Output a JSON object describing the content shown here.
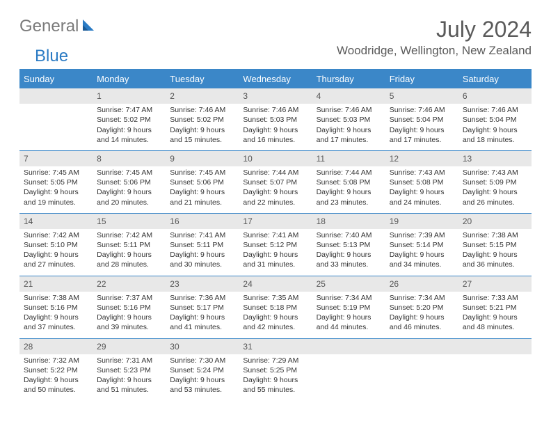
{
  "brand": {
    "part1": "General",
    "part2": "Blue"
  },
  "title": "July 2024",
  "location": "Woodridge, Wellington, New Zealand",
  "header_bg": "#3b87c8",
  "daynum_bg": "#e8e8e8",
  "days": [
    "Sunday",
    "Monday",
    "Tuesday",
    "Wednesday",
    "Thursday",
    "Friday",
    "Saturday"
  ],
  "weeks": [
    [
      null,
      {
        "n": "1",
        "sr": "7:47 AM",
        "ss": "5:02 PM",
        "dl": "9 hours and 14 minutes."
      },
      {
        "n": "2",
        "sr": "7:46 AM",
        "ss": "5:02 PM",
        "dl": "9 hours and 15 minutes."
      },
      {
        "n": "3",
        "sr": "7:46 AM",
        "ss": "5:03 PM",
        "dl": "9 hours and 16 minutes."
      },
      {
        "n": "4",
        "sr": "7:46 AM",
        "ss": "5:03 PM",
        "dl": "9 hours and 17 minutes."
      },
      {
        "n": "5",
        "sr": "7:46 AM",
        "ss": "5:04 PM",
        "dl": "9 hours and 17 minutes."
      },
      {
        "n": "6",
        "sr": "7:46 AM",
        "ss": "5:04 PM",
        "dl": "9 hours and 18 minutes."
      }
    ],
    [
      {
        "n": "7",
        "sr": "7:45 AM",
        "ss": "5:05 PM",
        "dl": "9 hours and 19 minutes."
      },
      {
        "n": "8",
        "sr": "7:45 AM",
        "ss": "5:06 PM",
        "dl": "9 hours and 20 minutes."
      },
      {
        "n": "9",
        "sr": "7:45 AM",
        "ss": "5:06 PM",
        "dl": "9 hours and 21 minutes."
      },
      {
        "n": "10",
        "sr": "7:44 AM",
        "ss": "5:07 PM",
        "dl": "9 hours and 22 minutes."
      },
      {
        "n": "11",
        "sr": "7:44 AM",
        "ss": "5:08 PM",
        "dl": "9 hours and 23 minutes."
      },
      {
        "n": "12",
        "sr": "7:43 AM",
        "ss": "5:08 PM",
        "dl": "9 hours and 24 minutes."
      },
      {
        "n": "13",
        "sr": "7:43 AM",
        "ss": "5:09 PM",
        "dl": "9 hours and 26 minutes."
      }
    ],
    [
      {
        "n": "14",
        "sr": "7:42 AM",
        "ss": "5:10 PM",
        "dl": "9 hours and 27 minutes."
      },
      {
        "n": "15",
        "sr": "7:42 AM",
        "ss": "5:11 PM",
        "dl": "9 hours and 28 minutes."
      },
      {
        "n": "16",
        "sr": "7:41 AM",
        "ss": "5:11 PM",
        "dl": "9 hours and 30 minutes."
      },
      {
        "n": "17",
        "sr": "7:41 AM",
        "ss": "5:12 PM",
        "dl": "9 hours and 31 minutes."
      },
      {
        "n": "18",
        "sr": "7:40 AM",
        "ss": "5:13 PM",
        "dl": "9 hours and 33 minutes."
      },
      {
        "n": "19",
        "sr": "7:39 AM",
        "ss": "5:14 PM",
        "dl": "9 hours and 34 minutes."
      },
      {
        "n": "20",
        "sr": "7:38 AM",
        "ss": "5:15 PM",
        "dl": "9 hours and 36 minutes."
      }
    ],
    [
      {
        "n": "21",
        "sr": "7:38 AM",
        "ss": "5:16 PM",
        "dl": "9 hours and 37 minutes."
      },
      {
        "n": "22",
        "sr": "7:37 AM",
        "ss": "5:16 PM",
        "dl": "9 hours and 39 minutes."
      },
      {
        "n": "23",
        "sr": "7:36 AM",
        "ss": "5:17 PM",
        "dl": "9 hours and 41 minutes."
      },
      {
        "n": "24",
        "sr": "7:35 AM",
        "ss": "5:18 PM",
        "dl": "9 hours and 42 minutes."
      },
      {
        "n": "25",
        "sr": "7:34 AM",
        "ss": "5:19 PM",
        "dl": "9 hours and 44 minutes."
      },
      {
        "n": "26",
        "sr": "7:34 AM",
        "ss": "5:20 PM",
        "dl": "9 hours and 46 minutes."
      },
      {
        "n": "27",
        "sr": "7:33 AM",
        "ss": "5:21 PM",
        "dl": "9 hours and 48 minutes."
      }
    ],
    [
      {
        "n": "28",
        "sr": "7:32 AM",
        "ss": "5:22 PM",
        "dl": "9 hours and 50 minutes."
      },
      {
        "n": "29",
        "sr": "7:31 AM",
        "ss": "5:23 PM",
        "dl": "9 hours and 51 minutes."
      },
      {
        "n": "30",
        "sr": "7:30 AM",
        "ss": "5:24 PM",
        "dl": "9 hours and 53 minutes."
      },
      {
        "n": "31",
        "sr": "7:29 AM",
        "ss": "5:25 PM",
        "dl": "9 hours and 55 minutes."
      },
      null,
      null,
      null
    ]
  ],
  "labels": {
    "sunrise": "Sunrise:",
    "sunset": "Sunset:",
    "daylight": "Daylight:"
  }
}
